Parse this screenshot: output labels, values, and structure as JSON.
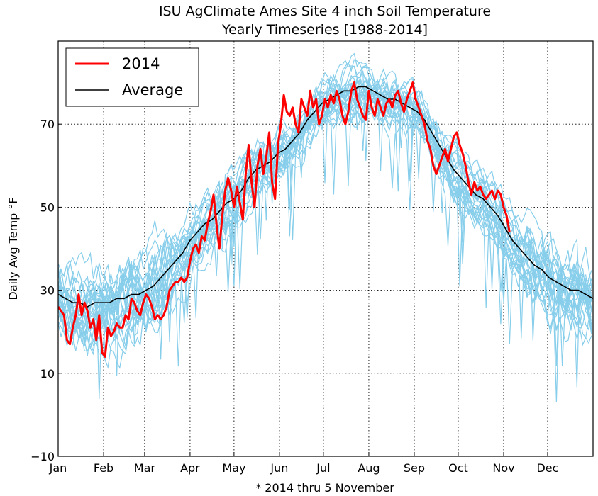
{
  "chart_data": {
    "type": "line",
    "title": "ISU AgClimate Ames Site 4 inch Soil Temperature",
    "subtitle": "Yearly Timeseries [1988-2014]",
    "xlabel": "* 2014 thru 5 November",
    "ylabel": "Daily Avg Temp °F",
    "xlim": [
      1,
      366
    ],
    "ylim": [
      -10,
      90
    ],
    "yticks": [
      -10,
      10,
      30,
      50,
      70
    ],
    "grid": true,
    "legend_position": "top-left",
    "x_ticks": [
      {
        "label": "Jan",
        "day": 1
      },
      {
        "label": "Feb",
        "day": 32
      },
      {
        "label": "Mar",
        "day": 60
      },
      {
        "label": "Apr",
        "day": 91
      },
      {
        "label": "May",
        "day": 121
      },
      {
        "label": "Jun",
        "day": 152
      },
      {
        "label": "Jul",
        "day": 182
      },
      {
        "label": "Aug",
        "day": 213
      },
      {
        "label": "Sep",
        "day": 244
      },
      {
        "label": "Oct",
        "day": 274
      },
      {
        "label": "Nov",
        "day": 305
      },
      {
        "label": "Dec",
        "day": 335
      }
    ],
    "colors": {
      "2014": "#ff0000",
      "Average": "#000000",
      "years": "#87ceeb"
    },
    "series": [
      {
        "name": "2014",
        "x": [
          1,
          3,
          5,
          7,
          9,
          11,
          13,
          15,
          17,
          19,
          21,
          23,
          25,
          27,
          29,
          31,
          33,
          35,
          37,
          39,
          41,
          43,
          45,
          47,
          49,
          51,
          53,
          55,
          57,
          59,
          61,
          63,
          65,
          67,
          69,
          71,
          73,
          75,
          77,
          79,
          81,
          83,
          85,
          87,
          89,
          91,
          93,
          95,
          97,
          99,
          101,
          103,
          105,
          107,
          109,
          111,
          113,
          115,
          117,
          119,
          121,
          123,
          125,
          127,
          129,
          131,
          133,
          135,
          137,
          139,
          141,
          143,
          145,
          147,
          149,
          151,
          153,
          155,
          157,
          159,
          161,
          163,
          165,
          167,
          169,
          171,
          173,
          175,
          177,
          179,
          181,
          183,
          185,
          187,
          189,
          191,
          193,
          195,
          197,
          199,
          201,
          203,
          205,
          207,
          209,
          211,
          213,
          215,
          217,
          219,
          221,
          223,
          225,
          227,
          229,
          231,
          233,
          235,
          237,
          239,
          241,
          243,
          245,
          247,
          249,
          251,
          253,
          255,
          257,
          259,
          261,
          263,
          265,
          267,
          269,
          271,
          273,
          275,
          277,
          279,
          281,
          283,
          285,
          287,
          289,
          291,
          293,
          295,
          297,
          299,
          301,
          303,
          305,
          307,
          309
        ],
        "values": [
          26,
          25,
          24,
          18,
          17,
          21,
          24,
          29,
          24,
          27,
          25,
          21,
          23,
          18,
          24,
          15,
          14,
          21,
          19,
          20,
          22,
          21,
          21,
          24,
          23,
          28,
          27,
          25,
          24,
          27,
          29,
          28,
          26,
          23,
          24,
          23,
          24,
          26,
          30,
          31,
          32,
          32,
          33,
          32,
          33,
          37,
          40,
          41,
          39,
          43,
          42,
          46,
          49,
          53,
          46,
          40,
          48,
          54,
          57,
          54,
          50,
          55,
          51,
          47,
          58,
          65,
          56,
          50,
          60,
          64,
          58,
          62,
          68,
          56,
          52,
          65,
          70,
          77,
          73,
          72,
          74,
          70,
          68,
          76,
          74,
          72,
          78,
          74,
          76,
          70,
          72,
          76,
          74,
          77,
          75,
          78,
          76,
          72,
          70,
          73,
          78,
          80,
          76,
          74,
          72,
          71,
          78,
          74,
          72,
          76,
          74,
          72,
          75,
          76,
          74,
          77,
          78,
          75,
          73,
          76,
          78,
          80,
          76,
          74,
          72,
          70,
          66,
          64,
          60,
          58,
          60,
          62,
          64,
          61,
          64,
          67,
          68,
          65,
          63,
          60,
          56,
          53,
          56,
          54,
          55,
          53,
          52,
          53,
          54,
          52,
          54,
          53,
          50,
          48,
          44
        ]
      },
      {
        "name": "Average",
        "x": [
          1,
          6,
          11,
          16,
          21,
          26,
          31,
          36,
          41,
          46,
          51,
          56,
          61,
          66,
          71,
          76,
          81,
          86,
          91,
          96,
          101,
          106,
          111,
          116,
          121,
          126,
          131,
          136,
          141,
          146,
          151,
          156,
          161,
          166,
          171,
          176,
          181,
          186,
          191,
          196,
          201,
          206,
          211,
          216,
          221,
          226,
          231,
          236,
          241,
          246,
          251,
          256,
          261,
          266,
          271,
          276,
          281,
          286,
          291,
          296,
          301,
          306,
          311,
          316,
          321,
          326,
          331,
          336,
          341,
          346,
          351,
          356,
          361,
          366
        ],
        "values": [
          29,
          28,
          27,
          27,
          26,
          27,
          27,
          27,
          28,
          28,
          29,
          29,
          30,
          31,
          33,
          35,
          37,
          39,
          42,
          44,
          46,
          47,
          49,
          51,
          52,
          54,
          57,
          59,
          60,
          61,
          63,
          64,
          66,
          68,
          71,
          73,
          75,
          76,
          77,
          78,
          78,
          79,
          79,
          78,
          77,
          76,
          76,
          75,
          74,
          73,
          71,
          68,
          65,
          62,
          59,
          57,
          55,
          53,
          52,
          50,
          48,
          45,
          42,
          40,
          38,
          36,
          35,
          33,
          32,
          31,
          30,
          30,
          29,
          28
        ]
      }
    ]
  },
  "legend": [
    {
      "label": "2014",
      "color": "#ff0000"
    },
    {
      "label": "Average",
      "color": "#000000"
    }
  ]
}
